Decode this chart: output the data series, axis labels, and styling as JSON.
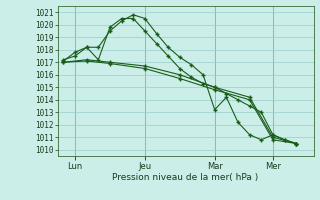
{
  "bg_color": "#cceee8",
  "grid_color": "#99cccc",
  "line_color": "#1a5c1a",
  "marker_color": "#1a5c1a",
  "xlabel": "Pression niveau de la mer( hPa )",
  "ylim": [
    1009.5,
    1021.5
  ],
  "yticks": [
    1010,
    1011,
    1012,
    1013,
    1014,
    1015,
    1016,
    1017,
    1018,
    1019,
    1020,
    1021
  ],
  "xtick_labels": [
    "Lun",
    "Jeu",
    "Mar",
    "Mer"
  ],
  "xtick_positions": [
    2,
    14,
    26,
    36
  ],
  "total_points": 42,
  "series1_x": [
    0,
    2,
    4,
    6,
    8,
    10,
    12,
    14,
    16,
    18,
    20,
    22,
    24,
    26,
    28,
    30,
    32,
    34,
    36,
    38,
    40
  ],
  "series1_y": [
    1017.2,
    1017.5,
    1018.2,
    1018.2,
    1019.5,
    1020.3,
    1020.8,
    1020.5,
    1019.3,
    1018.2,
    1017.4,
    1016.8,
    1016.0,
    1013.2,
    1014.2,
    1012.2,
    1011.2,
    1010.8,
    1011.2,
    1010.8,
    1010.5
  ],
  "series2_x": [
    0,
    2,
    4,
    6,
    8,
    10,
    12,
    14,
    16,
    18,
    20,
    22,
    24,
    26,
    28,
    30,
    32,
    34,
    36,
    38,
    40
  ],
  "series2_y": [
    1017.1,
    1017.8,
    1018.2,
    1017.2,
    1019.8,
    1020.5,
    1020.5,
    1019.5,
    1018.5,
    1017.5,
    1016.5,
    1015.8,
    1015.3,
    1015.0,
    1014.5,
    1014.0,
    1013.5,
    1013.0,
    1011.2,
    1010.8,
    1010.5
  ],
  "series3_x": [
    0,
    4,
    8,
    14,
    20,
    26,
    32,
    36,
    40
  ],
  "series3_y": [
    1017.0,
    1017.2,
    1017.0,
    1016.7,
    1016.0,
    1015.0,
    1014.2,
    1011.0,
    1010.5
  ],
  "series4_x": [
    0,
    4,
    8,
    14,
    20,
    26,
    32,
    36,
    40
  ],
  "series4_y": [
    1017.0,
    1017.1,
    1016.9,
    1016.5,
    1015.7,
    1014.8,
    1014.0,
    1010.8,
    1010.5
  ]
}
